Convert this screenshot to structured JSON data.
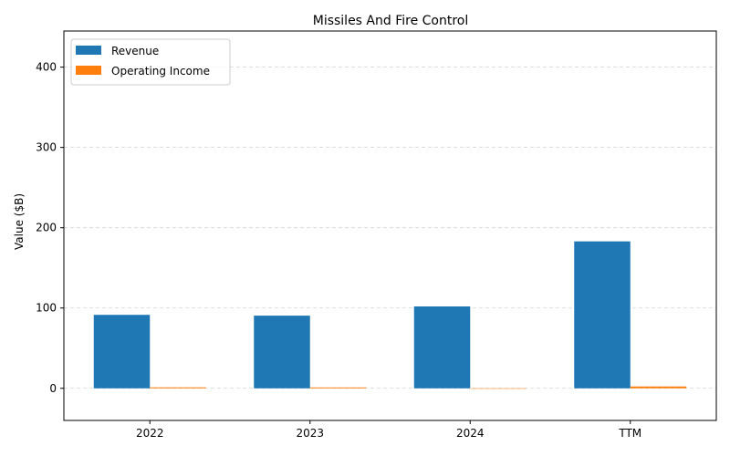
{
  "chart_data": {
    "type": "bar",
    "title": "Missiles And Fire Control",
    "xlabel": "",
    "ylabel": "Value ($B)",
    "categories": [
      "2022",
      "2023",
      "2024",
      "TTM"
    ],
    "series": [
      {
        "name": "Revenue",
        "color": "#1f77b4",
        "values": [
          91.5,
          90.5,
          102.0,
          183.0
        ]
      },
      {
        "name": "Operating Income",
        "color": "#ff7f0e",
        "values": [
          1.2,
          1.1,
          0.0,
          2.3
        ]
      }
    ],
    "ylim": [
      -40,
      445
    ],
    "yticks": [
      0,
      100,
      200,
      300,
      400
    ],
    "grid": true,
    "grid_axis": "y",
    "legend_position": "top-left"
  }
}
